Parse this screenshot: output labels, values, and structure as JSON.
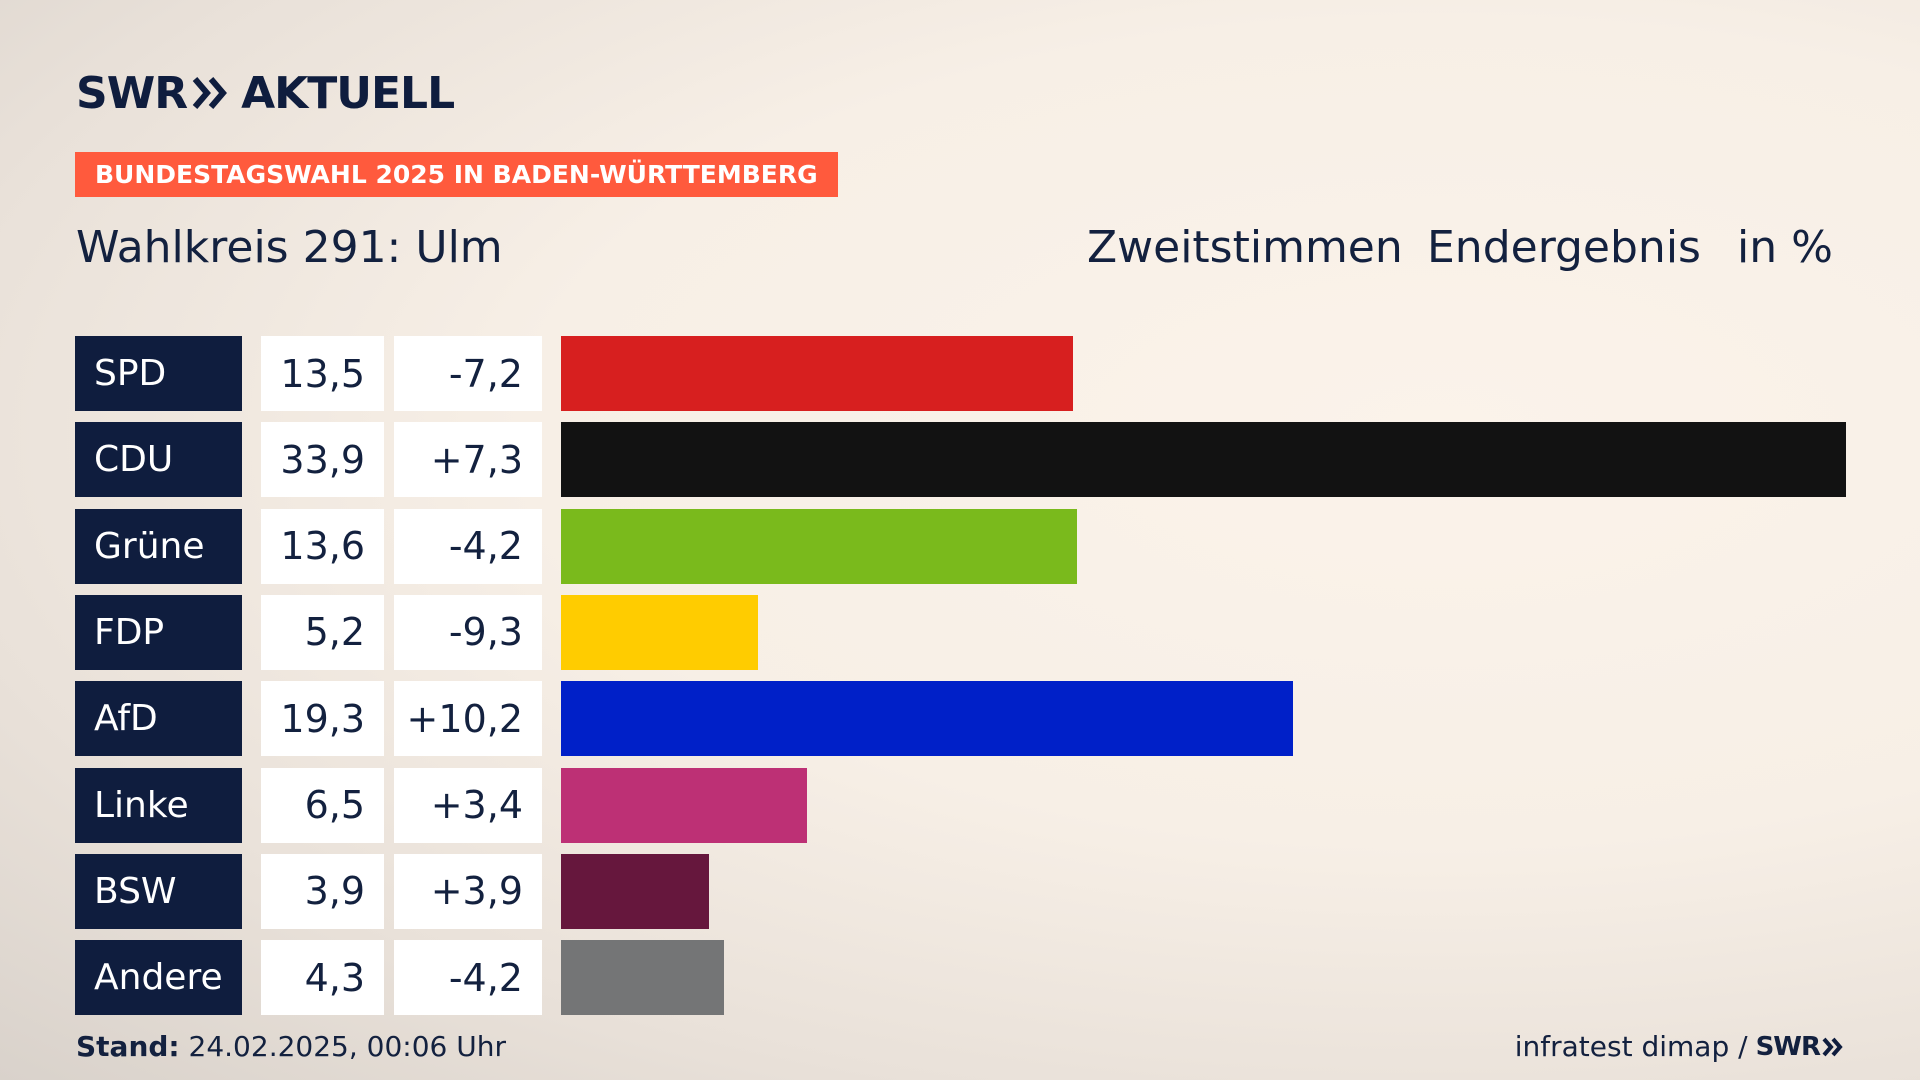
{
  "brand": {
    "logo_left": "SWR",
    "logo_right": "AKTUELL",
    "footer_logo": "SWR"
  },
  "badge": "BUNDESTAGSWAHL 2025 IN BADEN-WÜRTTEMBERG",
  "header": {
    "title": "Wahlkreis 291: Ulm",
    "vote_type": "Zweitstimmen",
    "status": "Endergebnis",
    "unit": "in %"
  },
  "footer": {
    "stand_label": "Stand:",
    "stand_value": "24.02.2025, 00:06 Uhr",
    "source": "infratest dimap /"
  },
  "colors": {
    "navy": "#0f1d3e",
    "badge": "#ff5a3d"
  },
  "chart_data": {
    "type": "bar",
    "orientation": "horizontal",
    "categories": [
      "SPD",
      "CDU",
      "Grüne",
      "FDP",
      "AfD",
      "Linke",
      "BSW",
      "Andere"
    ],
    "values": [
      13.5,
      33.9,
      13.6,
      5.2,
      19.3,
      6.5,
      3.9,
      4.3
    ],
    "value_labels": [
      "13,5",
      "33,9",
      "13,6",
      "5,2",
      "19,3",
      "6,5",
      "3,9",
      "4,3"
    ],
    "change": [
      -7.2,
      7.3,
      -4.2,
      -9.3,
      10.2,
      3.4,
      3.9,
      -4.2
    ],
    "change_labels": [
      "-7,2",
      "+7,3",
      "-4,2",
      "-9,3",
      "+10,2",
      "+3,4",
      "+3,9",
      "-4,2"
    ],
    "colors": [
      "#d71f1f",
      "#121212",
      "#7aba1c",
      "#ffcc00",
      "#0020c8",
      "#bd3075",
      "#66173d",
      "#747576"
    ],
    "xlim": [
      0,
      33.9
    ]
  }
}
